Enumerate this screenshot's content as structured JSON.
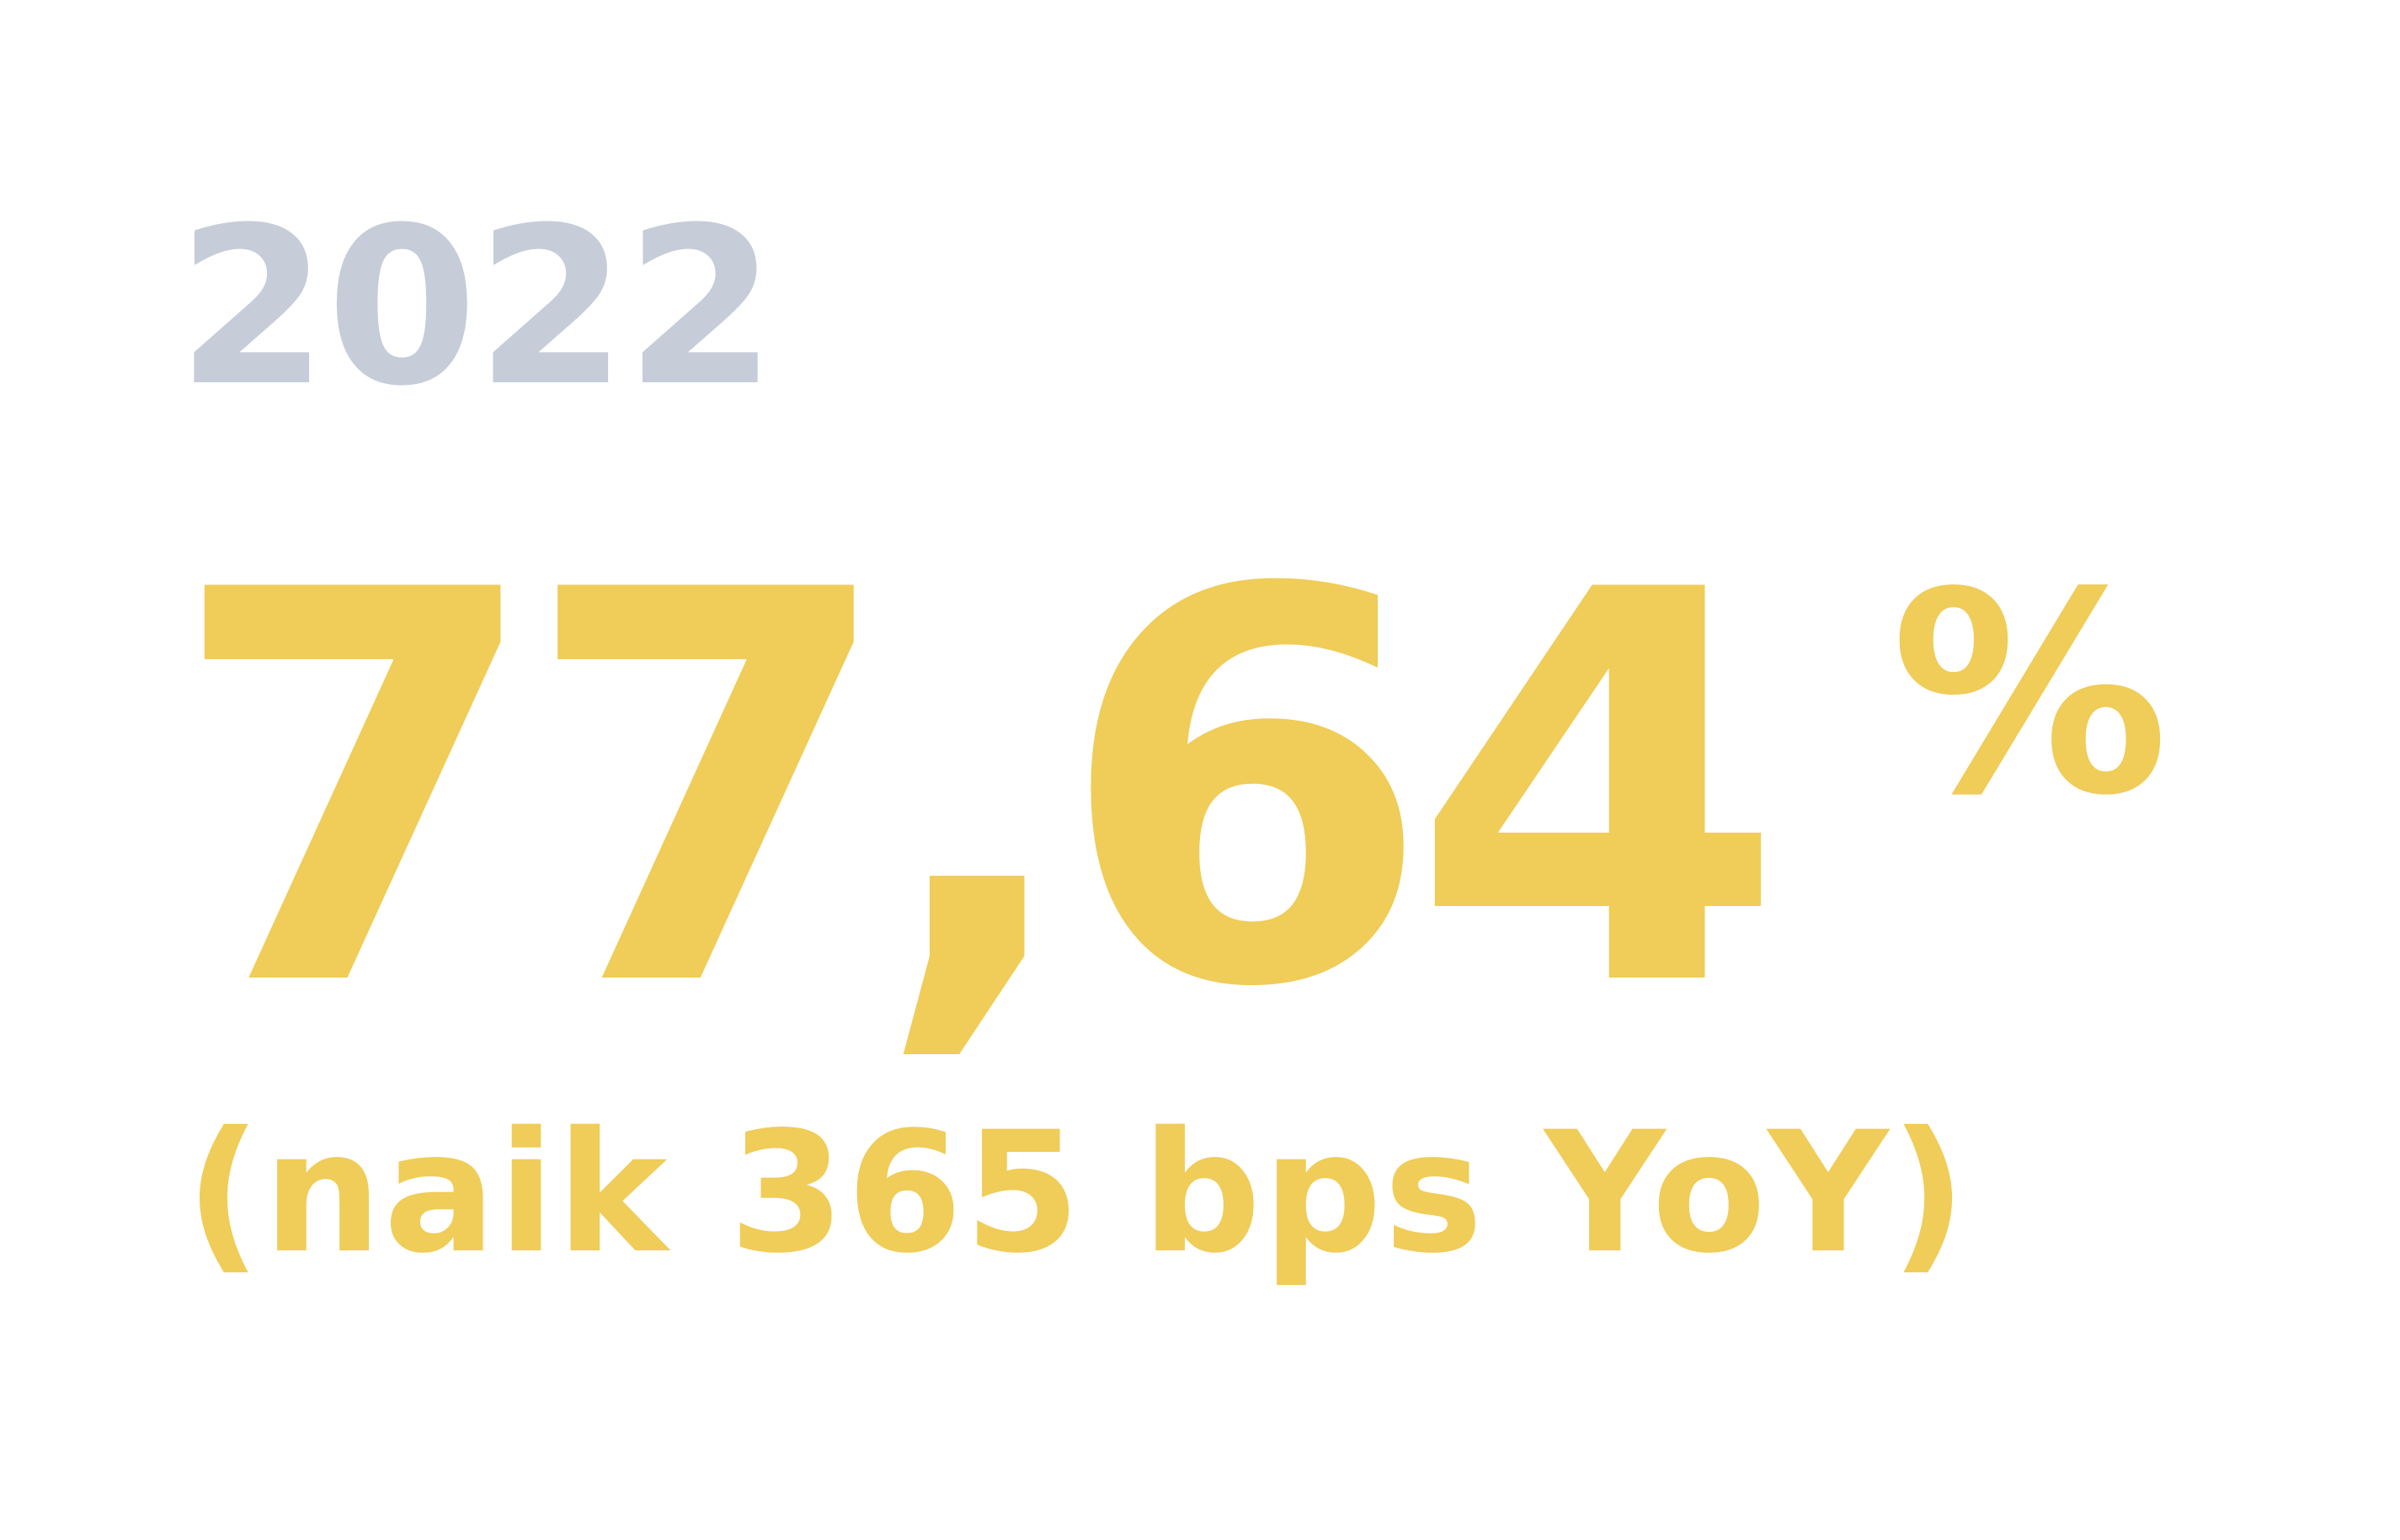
{
  "year": "2022",
  "metric": {
    "value": "77,64",
    "unit": "%",
    "change_note": "(naik 365 bps YoY)"
  },
  "colors": {
    "year": "#c6cdd9",
    "accent": "#f0cc58",
    "background": "#ffffff"
  }
}
